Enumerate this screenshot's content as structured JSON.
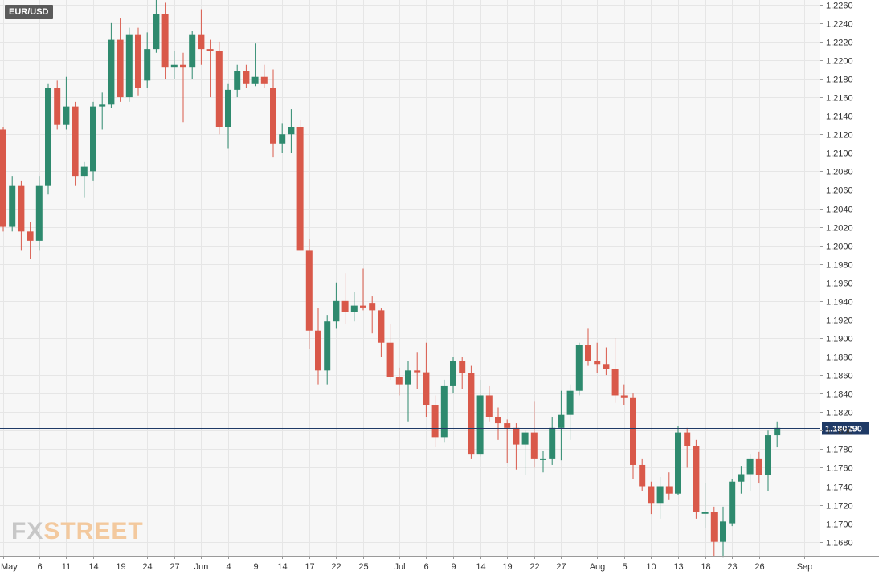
{
  "symbol": "EUR/USD",
  "logo": {
    "part1": "FX",
    "part2": "STREET"
  },
  "colors": {
    "up": "#2e8a6e",
    "down": "#d9594a",
    "background": "#f7f7f7",
    "grid": "#e6e6e6",
    "price_line": "#1f3a66",
    "price_tag_bg": "#1f3a66",
    "symbol_tag_bg": "#5b5b5b"
  },
  "chart_data": {
    "type": "candlestick",
    "symbol": "EUR/USD",
    "current_price": 1.18029,
    "current_price_label": "1.180290",
    "ylim": [
      1.1665,
      1.2265
    ],
    "y_ticks": [
      "1.2260",
      "1.2240",
      "1.2220",
      "1.2200",
      "1.2180",
      "1.2160",
      "1.2140",
      "1.2120",
      "1.2100",
      "1.2080",
      "1.2060",
      "1.2040",
      "1.2020",
      "1.2000",
      "1.1980",
      "1.1960",
      "1.1940",
      "1.1920",
      "1.1900",
      "1.1880",
      "1.1860",
      "1.1840",
      "1.1820",
      "1.1800",
      "1.1780",
      "1.1760",
      "1.1740",
      "1.1720",
      "1.1700",
      "1.1680"
    ],
    "x_ticks": [
      {
        "label": "May",
        "index": 0
      },
      {
        "label": "6",
        "index": 4
      },
      {
        "label": "11",
        "index": 7
      },
      {
        "label": "14",
        "index": 10
      },
      {
        "label": "19",
        "index": 13
      },
      {
        "label": "24",
        "index": 16
      },
      {
        "label": "27",
        "index": 19
      },
      {
        "label": "Jun",
        "index": 22
      },
      {
        "label": "4",
        "index": 25
      },
      {
        "label": "9",
        "index": 28
      },
      {
        "label": "14",
        "index": 31
      },
      {
        "label": "17",
        "index": 34
      },
      {
        "label": "22",
        "index": 37
      },
      {
        "label": "25",
        "index": 40
      },
      {
        "label": "Jul",
        "index": 44
      },
      {
        "label": "6",
        "index": 47
      },
      {
        "label": "9",
        "index": 50
      },
      {
        "label": "14",
        "index": 53
      },
      {
        "label": "19",
        "index": 56
      },
      {
        "label": "22",
        "index": 59
      },
      {
        "label": "27",
        "index": 62
      },
      {
        "label": "Aug",
        "index": 66
      },
      {
        "label": "5",
        "index": 69
      },
      {
        "label": "10",
        "index": 72
      },
      {
        "label": "13",
        "index": 75
      },
      {
        "label": "18",
        "index": 78
      },
      {
        "label": "23",
        "index": 81
      },
      {
        "label": "26",
        "index": 84
      },
      {
        "label": "Sep",
        "index": 89
      }
    ],
    "candles": [
      {
        "o": 1.2125,
        "h": 1.2128,
        "l": 1.2015,
        "c": 1.202
      },
      {
        "o": 1.202,
        "h": 1.2075,
        "l": 1.2015,
        "c": 1.2065
      },
      {
        "o": 1.2065,
        "h": 1.207,
        "l": 1.1995,
        "c": 1.2015
      },
      {
        "o": 1.2015,
        "h": 1.2025,
        "l": 1.1985,
        "c": 1.2005
      },
      {
        "o": 1.2005,
        "h": 1.2075,
        "l": 1.1995,
        "c": 1.2065
      },
      {
        "o": 1.2065,
        "h": 1.2175,
        "l": 1.2055,
        "c": 1.217
      },
      {
        "o": 1.217,
        "h": 1.2178,
        "l": 1.2125,
        "c": 1.213
      },
      {
        "o": 1.213,
        "h": 1.2182,
        "l": 1.2125,
        "c": 1.215
      },
      {
        "o": 1.215,
        "h": 1.2155,
        "l": 1.2065,
        "c": 1.2075
      },
      {
        "o": 1.2075,
        "h": 1.209,
        "l": 1.2052,
        "c": 1.2085
      },
      {
        "o": 1.208,
        "h": 1.2155,
        "l": 1.207,
        "c": 1.215
      },
      {
        "o": 1.215,
        "h": 1.2165,
        "l": 1.2125,
        "c": 1.2152
      },
      {
        "o": 1.2152,
        "h": 1.224,
        "l": 1.2148,
        "c": 1.2222
      },
      {
        "o": 1.2222,
        "h": 1.2245,
        "l": 1.2155,
        "c": 1.216
      },
      {
        "o": 1.216,
        "h": 1.2235,
        "l": 1.2155,
        "c": 1.2228
      },
      {
        "o": 1.2228,
        "h": 1.2235,
        "l": 1.2162,
        "c": 1.217
      },
      {
        "o": 1.2178,
        "h": 1.223,
        "l": 1.217,
        "c": 1.2212
      },
      {
        "o": 1.2212,
        "h": 1.2265,
        "l": 1.2208,
        "c": 1.225
      },
      {
        "o": 1.225,
        "h": 1.2262,
        "l": 1.218,
        "c": 1.2192
      },
      {
        "o": 1.2192,
        "h": 1.221,
        "l": 1.218,
        "c": 1.2195
      },
      {
        "o": 1.2195,
        "h": 1.2208,
        "l": 1.2133,
        "c": 1.2192
      },
      {
        "o": 1.2192,
        "h": 1.2232,
        "l": 1.218,
        "c": 1.2228
      },
      {
        "o": 1.2228,
        "h": 1.2255,
        "l": 1.2195,
        "c": 1.2212
      },
      {
        "o": 1.2212,
        "h": 1.2222,
        "l": 1.216,
        "c": 1.221
      },
      {
        "o": 1.221,
        "h": 1.222,
        "l": 1.212,
        "c": 1.2128
      },
      {
        "o": 1.2128,
        "h": 1.2175,
        "l": 1.2105,
        "c": 1.2168
      },
      {
        "o": 1.2168,
        "h": 1.2195,
        "l": 1.216,
        "c": 1.2188
      },
      {
        "o": 1.2188,
        "h": 1.2195,
        "l": 1.217,
        "c": 1.2175
      },
      {
        "o": 1.2175,
        "h": 1.2218,
        "l": 1.2172,
        "c": 1.2182
      },
      {
        "o": 1.2182,
        "h": 1.2195,
        "l": 1.217,
        "c": 1.2175
      },
      {
        "o": 1.217,
        "h": 1.219,
        "l": 1.2095,
        "c": 1.211
      },
      {
        "o": 1.211,
        "h": 1.2132,
        "l": 1.21,
        "c": 1.212
      },
      {
        "o": 1.212,
        "h": 1.2147,
        "l": 1.21,
        "c": 1.2128
      },
      {
        "o": 1.2128,
        "h": 1.2135,
        "l": 1.1995,
        "c": 1.1995
      },
      {
        "o": 1.1995,
        "h": 1.2007,
        "l": 1.1888,
        "c": 1.1908
      },
      {
        "o": 1.1908,
        "h": 1.1932,
        "l": 1.185,
        "c": 1.1865
      },
      {
        "o": 1.1865,
        "h": 1.1925,
        "l": 1.185,
        "c": 1.1918
      },
      {
        "o": 1.1918,
        "h": 1.196,
        "l": 1.191,
        "c": 1.194
      },
      {
        "o": 1.194,
        "h": 1.197,
        "l": 1.1915,
        "c": 1.1928
      },
      {
        "o": 1.1928,
        "h": 1.195,
        "l": 1.1918,
        "c": 1.1935
      },
      {
        "o": 1.1935,
        "h": 1.1975,
        "l": 1.193,
        "c": 1.1933
      },
      {
        "o": 1.1938,
        "h": 1.1945,
        "l": 1.1905,
        "c": 1.193
      },
      {
        "o": 1.193,
        "h": 1.1932,
        "l": 1.188,
        "c": 1.1895
      },
      {
        "o": 1.1895,
        "h": 1.1915,
        "l": 1.1855,
        "c": 1.1858
      },
      {
        "o": 1.1858,
        "h": 1.1868,
        "l": 1.1838,
        "c": 1.185
      },
      {
        "o": 1.185,
        "h": 1.1875,
        "l": 1.181,
        "c": 1.1865
      },
      {
        "o": 1.1865,
        "h": 1.1885,
        "l": 1.1845,
        "c": 1.1863
      },
      {
        "o": 1.1863,
        "h": 1.1895,
        "l": 1.1815,
        "c": 1.1828
      },
      {
        "o": 1.1828,
        "h": 1.1838,
        "l": 1.1782,
        "c": 1.1793
      },
      {
        "o": 1.1793,
        "h": 1.1855,
        "l": 1.1787,
        "c": 1.1848
      },
      {
        "o": 1.1848,
        "h": 1.188,
        "l": 1.184,
        "c": 1.1875
      },
      {
        "o": 1.1875,
        "h": 1.188,
        "l": 1.1845,
        "c": 1.1862
      },
      {
        "o": 1.1862,
        "h": 1.187,
        "l": 1.177,
        "c": 1.1775
      },
      {
        "o": 1.1775,
        "h": 1.1855,
        "l": 1.1772,
        "c": 1.1838
      },
      {
        "o": 1.1838,
        "h": 1.1848,
        "l": 1.181,
        "c": 1.1815
      },
      {
        "o": 1.1815,
        "h": 1.1825,
        "l": 1.179,
        "c": 1.1808
      },
      {
        "o": 1.1808,
        "h": 1.1812,
        "l": 1.1765,
        "c": 1.1803
      },
      {
        "o": 1.1803,
        "h": 1.1808,
        "l": 1.1758,
        "c": 1.1785
      },
      {
        "o": 1.1785,
        "h": 1.18,
        "l": 1.1752,
        "c": 1.1798
      },
      {
        "o": 1.1798,
        "h": 1.1832,
        "l": 1.176,
        "c": 1.177
      },
      {
        "o": 1.177,
        "h": 1.1778,
        "l": 1.1755,
        "c": 1.177
      },
      {
        "o": 1.177,
        "h": 1.1815,
        "l": 1.1763,
        "c": 1.1803
      },
      {
        "o": 1.1803,
        "h": 1.1843,
        "l": 1.1768,
        "c": 1.1817
      },
      {
        "o": 1.1817,
        "h": 1.185,
        "l": 1.179,
        "c": 1.1843
      },
      {
        "o": 1.1843,
        "h": 1.1895,
        "l": 1.1838,
        "c": 1.1893
      },
      {
        "o": 1.1893,
        "h": 1.191,
        "l": 1.187,
        "c": 1.1875
      },
      {
        "o": 1.1875,
        "h": 1.1895,
        "l": 1.1862,
        "c": 1.1872
      },
      {
        "o": 1.1872,
        "h": 1.189,
        "l": 1.186,
        "c": 1.1867
      },
      {
        "o": 1.1867,
        "h": 1.19,
        "l": 1.183,
        "c": 1.1838
      },
      {
        "o": 1.1838,
        "h": 1.185,
        "l": 1.1828,
        "c": 1.1836
      },
      {
        "o": 1.1836,
        "h": 1.184,
        "l": 1.1748,
        "c": 1.1763
      },
      {
        "o": 1.1763,
        "h": 1.177,
        "l": 1.1735,
        "c": 1.174
      },
      {
        "o": 1.174,
        "h": 1.1745,
        "l": 1.171,
        "c": 1.1722
      },
      {
        "o": 1.1722,
        "h": 1.175,
        "l": 1.1705,
        "c": 1.174
      },
      {
        "o": 1.174,
        "h": 1.1755,
        "l": 1.1725,
        "c": 1.1732
      },
      {
        "o": 1.1732,
        "h": 1.1805,
        "l": 1.173,
        "c": 1.1798
      },
      {
        "o": 1.1798,
        "h": 1.1803,
        "l": 1.176,
        "c": 1.1783
      },
      {
        "o": 1.1783,
        "h": 1.179,
        "l": 1.1705,
        "c": 1.1712
      },
      {
        "o": 1.1712,
        "h": 1.1743,
        "l": 1.1695,
        "c": 1.1712
      },
      {
        "o": 1.1712,
        "h": 1.1718,
        "l": 1.1665,
        "c": 1.168
      },
      {
        "o": 1.168,
        "h": 1.1718,
        "l": 1.1663,
        "c": 1.1702
      },
      {
        "o": 1.17,
        "h": 1.1748,
        "l": 1.1697,
        "c": 1.1745
      },
      {
        "o": 1.1745,
        "h": 1.1762,
        "l": 1.1732,
        "c": 1.1753
      },
      {
        "o": 1.1753,
        "h": 1.1775,
        "l": 1.1735,
        "c": 1.177
      },
      {
        "o": 1.177,
        "h": 1.1777,
        "l": 1.1743,
        "c": 1.1752
      },
      {
        "o": 1.1752,
        "h": 1.18,
        "l": 1.1735,
        "c": 1.1795
      },
      {
        "o": 1.1795,
        "h": 1.181,
        "l": 1.1782,
        "c": 1.1803
      }
    ]
  }
}
